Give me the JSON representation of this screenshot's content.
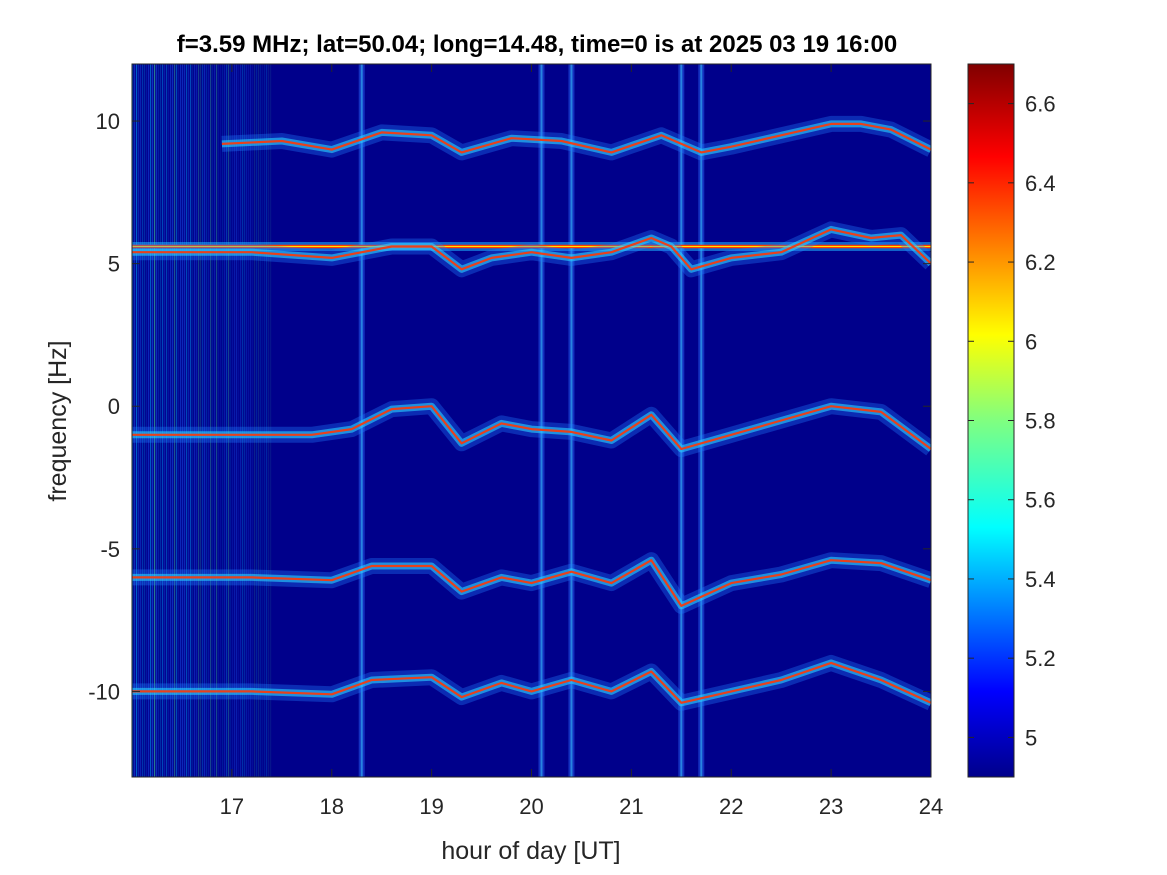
{
  "chart_data": {
    "type": "heatmap",
    "title": "f=3.59 MHz;  lat=50.04; long=14.48, time=0 is at 2025 03 19 16:00",
    "xlabel": "hour of day [UT]",
    "ylabel": "frequency [Hz]",
    "xlim": [
      16.0,
      24.0
    ],
    "ylim": [
      -13.0,
      12.0
    ],
    "xticks": [
      17,
      18,
      19,
      20,
      21,
      22,
      23,
      24
    ],
    "xtick_labels": [
      "17",
      "18",
      "19",
      "20",
      "21",
      "22",
      "23",
      "24"
    ],
    "yticks": [
      10,
      5,
      0,
      -5,
      -10
    ],
    "ytick_labels": [
      "10",
      "5",
      "0",
      "-5",
      "-10"
    ],
    "colorbar": {
      "range": [
        4.9,
        6.7
      ],
      "ticks": [
        5.0,
        5.2,
        5.4,
        5.6,
        5.8,
        6.0,
        6.2,
        6.4,
        6.6
      ],
      "tick_labels": [
        "5",
        "5.2",
        "5.4",
        "5.6",
        "5.8",
        "6",
        "6.2",
        "6.4",
        "6.6"
      ],
      "colormap": "jet"
    },
    "grid": false,
    "background_color": "#00008b",
    "noise_region": {
      "x_start": 16.0,
      "x_end": 17.4
    },
    "vertical_noise_bands": [
      18.3,
      20.1,
      20.4,
      21.5,
      21.7
    ],
    "steady_carrier": {
      "y": 5.6,
      "x_start": 16.0,
      "x_end": 24.0
    },
    "traces": [
      {
        "points": [
          [
            16.9,
            9.2
          ],
          [
            17.5,
            9.3
          ],
          [
            18.0,
            9.0
          ],
          [
            18.5,
            9.6
          ],
          [
            19.0,
            9.5
          ],
          [
            19.3,
            8.9
          ],
          [
            19.8,
            9.4
          ],
          [
            20.3,
            9.3
          ],
          [
            20.8,
            8.9
          ],
          [
            21.3,
            9.5
          ],
          [
            21.7,
            8.9
          ],
          [
            22.0,
            9.1
          ],
          [
            22.5,
            9.5
          ],
          [
            23.0,
            9.9
          ],
          [
            23.3,
            9.9
          ],
          [
            23.6,
            9.7
          ],
          [
            24.0,
            9.0
          ]
        ]
      },
      {
        "points": [
          [
            16.0,
            5.4
          ],
          [
            17.2,
            5.4
          ],
          [
            18.0,
            5.2
          ],
          [
            18.6,
            5.6
          ],
          [
            19.0,
            5.6
          ],
          [
            19.3,
            4.8
          ],
          [
            19.6,
            5.2
          ],
          [
            20.0,
            5.4
          ],
          [
            20.4,
            5.2
          ],
          [
            20.8,
            5.4
          ],
          [
            21.2,
            5.9
          ],
          [
            21.4,
            5.6
          ],
          [
            21.6,
            4.8
          ],
          [
            22.0,
            5.2
          ],
          [
            22.5,
            5.4
          ],
          [
            23.0,
            6.2
          ],
          [
            23.4,
            5.9
          ],
          [
            23.7,
            6.0
          ],
          [
            24.0,
            5.0
          ]
        ]
      },
      {
        "points": [
          [
            16.0,
            -1.0
          ],
          [
            17.0,
            -1.0
          ],
          [
            17.8,
            -1.0
          ],
          [
            18.2,
            -0.8
          ],
          [
            18.6,
            -0.1
          ],
          [
            19.0,
            0.0
          ],
          [
            19.3,
            -1.3
          ],
          [
            19.7,
            -0.6
          ],
          [
            20.0,
            -0.8
          ],
          [
            20.4,
            -0.9
          ],
          [
            20.8,
            -1.2
          ],
          [
            21.2,
            -0.3
          ],
          [
            21.5,
            -1.5
          ],
          [
            22.0,
            -1.0
          ],
          [
            22.5,
            -0.5
          ],
          [
            23.0,
            0.0
          ],
          [
            23.5,
            -0.2
          ],
          [
            24.0,
            -1.5
          ]
        ]
      },
      {
        "points": [
          [
            16.0,
            -6.0
          ],
          [
            17.2,
            -6.0
          ],
          [
            18.0,
            -6.1
          ],
          [
            18.4,
            -5.6
          ],
          [
            19.0,
            -5.6
          ],
          [
            19.3,
            -6.5
          ],
          [
            19.7,
            -6.0
          ],
          [
            20.0,
            -6.2
          ],
          [
            20.4,
            -5.8
          ],
          [
            20.8,
            -6.2
          ],
          [
            21.2,
            -5.4
          ],
          [
            21.5,
            -7.0
          ],
          [
            22.0,
            -6.2
          ],
          [
            22.5,
            -5.9
          ],
          [
            23.0,
            -5.4
          ],
          [
            23.5,
            -5.5
          ],
          [
            24.0,
            -6.1
          ]
        ]
      },
      {
        "points": [
          [
            16.0,
            -10.0
          ],
          [
            17.2,
            -10.0
          ],
          [
            18.0,
            -10.1
          ],
          [
            18.4,
            -9.6
          ],
          [
            19.0,
            -9.5
          ],
          [
            19.3,
            -10.2
          ],
          [
            19.7,
            -9.7
          ],
          [
            20.0,
            -10.0
          ],
          [
            20.4,
            -9.6
          ],
          [
            20.8,
            -10.0
          ],
          [
            21.2,
            -9.3
          ],
          [
            21.5,
            -10.4
          ],
          [
            22.0,
            -10.0
          ],
          [
            22.5,
            -9.6
          ],
          [
            23.0,
            -9.0
          ],
          [
            23.5,
            -9.6
          ],
          [
            24.0,
            -10.4
          ]
        ]
      }
    ]
  }
}
